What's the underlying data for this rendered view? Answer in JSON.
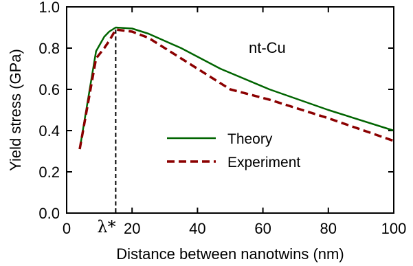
{
  "chart_data": {
    "type": "line",
    "xlabel": "Distance between nanotwins (nm)",
    "ylabel": "Yield stress (GPa)",
    "xlim": [
      0,
      100
    ],
    "ylim": [
      0,
      1.0
    ],
    "x_ticks": [
      0,
      20,
      40,
      60,
      80,
      100
    ],
    "x_tick_labels": [
      "0",
      "20",
      "40",
      "60",
      "80",
      "100"
    ],
    "y_ticks": [
      0.0,
      0.2,
      0.4,
      0.6,
      0.8,
      1.0
    ],
    "y_tick_labels": [
      "0.0",
      "0.2",
      "0.4",
      "0.6",
      "0.8",
      "1.0"
    ],
    "annotations": {
      "material": "nt-Cu",
      "critical_marker": "λ*",
      "critical_x": 15
    },
    "legend_position": "center-right",
    "series": [
      {
        "name": "Theory",
        "color": "#006400",
        "style": "solid",
        "x": [
          4,
          9,
          11.5,
          13,
          15,
          20,
          25,
          35,
          47,
          62,
          80,
          100
        ],
        "y": [
          0.31,
          0.785,
          0.855,
          0.88,
          0.9,
          0.895,
          0.87,
          0.8,
          0.7,
          0.6,
          0.5,
          0.4
        ]
      },
      {
        "name": "Experiment",
        "color": "#8b0000",
        "style": "dashed",
        "x": [
          4,
          9,
          11.5,
          13,
          15,
          20,
          25,
          35,
          50,
          62,
          80,
          100
        ],
        "y": [
          0.31,
          0.75,
          0.8,
          0.835,
          0.89,
          0.88,
          0.85,
          0.75,
          0.6,
          0.55,
          0.46,
          0.35
        ]
      }
    ]
  }
}
